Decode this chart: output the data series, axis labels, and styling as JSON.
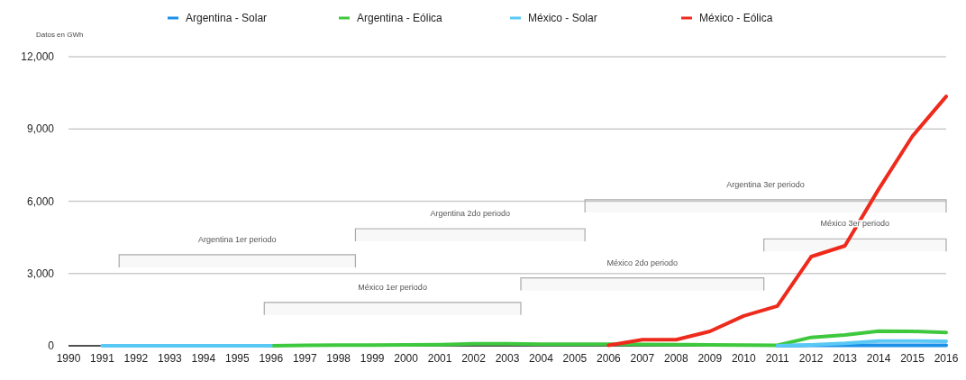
{
  "chart_data": {
    "type": "line",
    "ylabel": "Datos en GWh",
    "x": [
      1991,
      1992,
      1993,
      1994,
      1995,
      1996,
      1997,
      1998,
      1999,
      2000,
      2001,
      2002,
      2003,
      2004,
      2005,
      2006,
      2007,
      2008,
      2009,
      2010,
      2011,
      2012,
      2013,
      2014,
      2015,
      2016
    ],
    "xlim": [
      1990,
      2016
    ],
    "xticks": [
      1990,
      1991,
      1992,
      1993,
      1994,
      1995,
      1996,
      1997,
      1998,
      1999,
      2000,
      2001,
      2002,
      2003,
      2004,
      2005,
      2006,
      2007,
      2008,
      2009,
      2010,
      2011,
      2012,
      2013,
      2014,
      2015,
      2016
    ],
    "ylim": [
      0,
      12000
    ],
    "yticks": [
      0,
      {
        "value": 3000,
        "label": "3,000"
      },
      {
        "value": 6000,
        "label": "6,000"
      },
      {
        "value": 9000,
        "label": "9,000"
      },
      {
        "value": 12000,
        "label": "12,000"
      }
    ],
    "grid": "y",
    "legend": "top",
    "series": [
      {
        "name": "Argentina - Solar",
        "color": "#1a8fe8",
        "values": [
          null,
          null,
          null,
          null,
          null,
          null,
          null,
          null,
          null,
          null,
          null,
          null,
          null,
          null,
          null,
          null,
          null,
          null,
          null,
          null,
          0,
          20,
          20,
          20,
          20,
          20
        ]
      },
      {
        "name": "Argentina - Eólica",
        "color": "#3ec83e",
        "values": [
          null,
          null,
          null,
          null,
          null,
          0,
          20,
          30,
          30,
          40,
          50,
          80,
          80,
          70,
          70,
          70,
          60,
          50,
          40,
          30,
          20,
          350,
          450,
          610,
          600,
          550
        ]
      },
      {
        "name": "México - Solar",
        "color": "#5ac8f5",
        "values": [
          0,
          0,
          0,
          0,
          0,
          0,
          null,
          null,
          null,
          null,
          null,
          null,
          null,
          null,
          null,
          null,
          null,
          null,
          null,
          null,
          0,
          40,
          100,
          200,
          200,
          190
        ]
      },
      {
        "name": "México - Eólica",
        "color": "#ee2a1c",
        "values": [
          null,
          null,
          null,
          null,
          null,
          null,
          null,
          null,
          null,
          null,
          null,
          null,
          null,
          null,
          null,
          20,
          250,
          250,
          600,
          1240,
          1650,
          3700,
          4150,
          6500,
          8700,
          10350
        ]
      }
    ],
    "bands": [
      {
        "axis": "x",
        "from": 1991.5,
        "to": 1998.5,
        "label": "Argentina 1er periodo",
        "color": "#aaaaaa"
      },
      {
        "axis": "x",
        "from": 1995.8,
        "to": 2003.4,
        "label": "México 1er periodo",
        "color": "#aaaaaa"
      },
      {
        "axis": "x",
        "from": 1998.5,
        "to": 2005.3,
        "label": "Argentina 2do periodo",
        "color": "#aaaaaa"
      },
      {
        "axis": "x",
        "from": 2003.4,
        "to": 2010.6,
        "label": "México 2do periodo",
        "color": "#aaaaaa"
      },
      {
        "axis": "x",
        "from": 2005.3,
        "to": 2016,
        "label": "Argentina 3er periodo",
        "color": "#aaaaaa"
      },
      {
        "axis": "x",
        "from": 2010.6,
        "to": 2016,
        "label": "México 3er periodo",
        "color": "#aaaaaa"
      }
    ]
  }
}
